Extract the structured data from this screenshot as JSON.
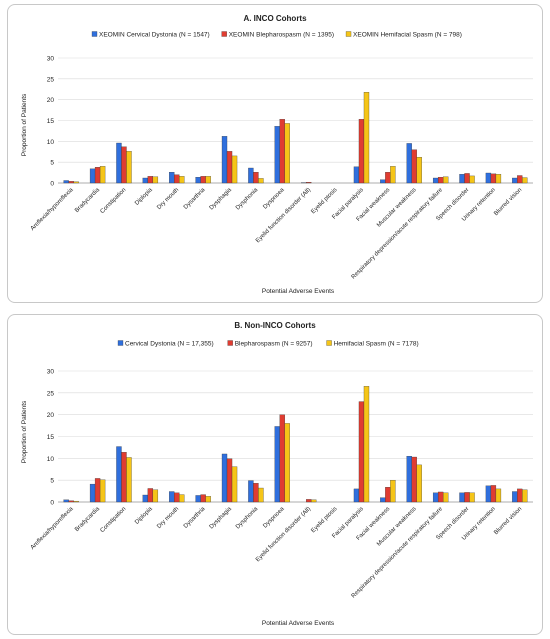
{
  "chart_data": [
    {
      "type": "bar",
      "title": "A. INCO Cohorts",
      "xlabel": "Potential Adverse Events",
      "ylabel": "Proportion of Patients",
      "ylim": [
        0,
        30
      ],
      "yticks": [
        0,
        5,
        10,
        15,
        20,
        25,
        30
      ],
      "grid": true,
      "legend": "top",
      "categories": [
        "Areflexia/hyporeflexia",
        "Bradycardia",
        "Constipation",
        "Diplopia",
        "Dry mouth",
        "Dysarthria",
        "Dysphagia",
        "Dysphonia",
        "Dyspnoea",
        "Eyelid function disorder (All)",
        "Eyelid ptosis",
        "Facial paralysis",
        "Facial weakness",
        "Muscular weakness",
        "Respiratory depression/acute respiratory failure",
        "Speech disorder",
        "Urinary retention",
        "Blurred vision"
      ],
      "series": [
        {
          "name": "XEOMIN Cervical Dystonia (N = 1547)",
          "color": "#2f6fdd",
          "values": [
            0.6,
            3.4,
            9.6,
            1.2,
            2.6,
            1.4,
            11.2,
            3.6,
            13.6,
            0.1,
            0.0,
            3.9,
            0.8,
            9.5,
            1.2,
            2.1,
            2.4,
            1.2
          ]
        },
        {
          "name": "XEOMIN Blepharospasm (N = 1395)",
          "color": "#e03c31",
          "values": [
            0.4,
            3.8,
            8.7,
            1.6,
            2.0,
            1.6,
            7.6,
            2.6,
            15.3,
            0.2,
            0.0,
            15.3,
            2.6,
            8.0,
            1.4,
            2.3,
            2.2,
            1.8
          ]
        },
        {
          "name": "XEOMIN Hemifacial Spasm (N = 798)",
          "color": "#f5c518",
          "values": [
            0.3,
            4.0,
            7.6,
            1.5,
            1.6,
            1.6,
            6.5,
            1.1,
            14.3,
            0.0,
            0.0,
            21.8,
            4.0,
            6.2,
            1.5,
            1.7,
            2.1,
            1.3
          ]
        }
      ]
    },
    {
      "type": "bar",
      "title": "B. Non-INCO Cohorts",
      "xlabel": "Potential Adverse Events",
      "ylabel": "Proportion of Patients",
      "ylim": [
        0,
        30
      ],
      "yticks": [
        0,
        5,
        10,
        15,
        20,
        25,
        30
      ],
      "grid": true,
      "legend": "top",
      "categories": [
        "Areflexia/hyporeflexia",
        "Bradycardia",
        "Constipation",
        "Diplopia",
        "Dry mouth",
        "Dysarthria",
        "Dysphagia",
        "Dysphonia",
        "Dyspnoea",
        "Eyelid function disorder (All)",
        "Eyelid ptosis",
        "Facial paralysis",
        "Facial weakness",
        "Muscular weakness",
        "Respiratory depression/acute respiratory failure",
        "Speech disorder",
        "Urinary retention",
        "Blurred vision"
      ],
      "series": [
        {
          "name": "Cervical Dystonia (N = 17,355)",
          "color": "#2f6fdd",
          "values": [
            0.5,
            4.1,
            12.7,
            1.6,
            2.4,
            1.5,
            11.0,
            4.9,
            17.3,
            0.0,
            0.0,
            3.0,
            1.0,
            10.5,
            2.1,
            2.1,
            3.7,
            2.4
          ]
        },
        {
          "name": "Blepharospasm (N = 9257)",
          "color": "#e03c31",
          "values": [
            0.3,
            5.4,
            11.4,
            3.1,
            2.1,
            1.7,
            9.9,
            4.3,
            20.0,
            0.6,
            0.0,
            23.0,
            3.4,
            10.3,
            2.3,
            2.2,
            3.8,
            3.0
          ]
        },
        {
          "name": "Hemifacial Spasm (N = 7178)",
          "color": "#f5c518",
          "values": [
            0.2,
            5.1,
            10.2,
            2.8,
            1.7,
            1.3,
            8.1,
            3.2,
            18.0,
            0.5,
            0.0,
            26.5,
            5.0,
            8.5,
            2.1,
            2.1,
            3.0,
            2.8
          ]
        }
      ]
    }
  ]
}
